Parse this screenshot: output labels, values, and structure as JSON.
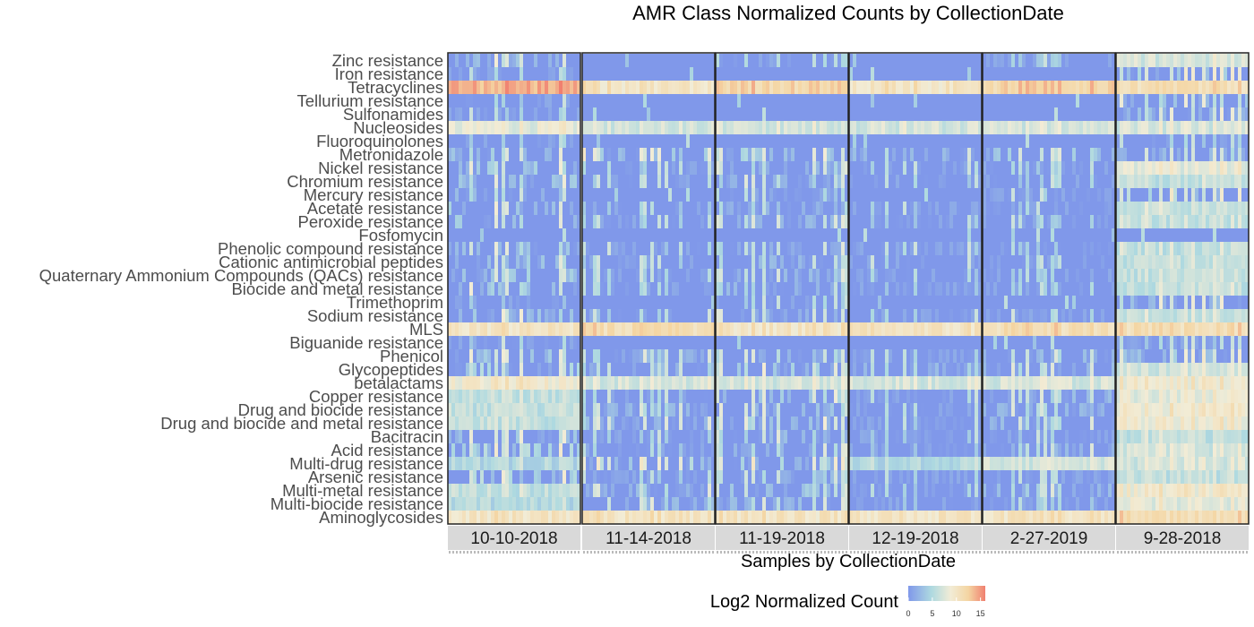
{
  "chart_data": {
    "type": "heatmap",
    "title": "AMR Class Normalized Counts by CollectionDate",
    "xlabel": "Samples by CollectionDate",
    "ylabel": "",
    "legend": {
      "title": "Log2 Normalized Count",
      "ticks": [
        0,
        5,
        10,
        15
      ],
      "range": [
        0,
        16
      ],
      "colors": [
        "#8098ea",
        "#aed9e0",
        "#f2ecd6",
        "#f4d5a2",
        "#f08070"
      ],
      "placement": "bottom"
    },
    "facets": [
      "10-10-2018",
      "11-14-2018",
      "11-19-2018",
      "12-19-2018",
      "2-27-2019",
      "9-28-2018"
    ],
    "rows": [
      "Zinc resistance",
      "Iron resistance",
      "Tetracyclines",
      "Tellurium resistance",
      "Sulfonamides",
      "Nucleosides",
      "Fluoroquinolones",
      "Metronidazole",
      "Nickel resistance",
      "Chromium resistance",
      "Mercury resistance",
      "Acetate resistance",
      "Peroxide resistance",
      "Fosfomycin",
      "Phenolic compound resistance",
      "Cationic antimicrobial peptides",
      "Quaternary Ammonium Compounds (QACs) resistance",
      "Biocide and metal resistance",
      "Trimethoprim",
      "Sodium resistance",
      "MLS",
      "Biguanide resistance",
      "Phenicol",
      "Glycopeptides",
      "betalactams",
      "Copper resistance",
      "Drug and biocide resistance",
      "Drug and biocide and metal resistance",
      "Bacitracin",
      "Acid resistance",
      "Multi-drug resistance",
      "Arsenic resistance",
      "Multi-metal resistance",
      "Multi-biocide resistance",
      "Aminoglycosides"
    ],
    "facet_row_means": [
      [
        3,
        1,
        14,
        1,
        1,
        8,
        1,
        3,
        3,
        3,
        2,
        3,
        3,
        0,
        3,
        3,
        3,
        3,
        1,
        3,
        10,
        1,
        3,
        4,
        9,
        6,
        6,
        6,
        3,
        4,
        5,
        4,
        6,
        5,
        10
      ],
      [
        0,
        0,
        10,
        0,
        0,
        7,
        0,
        4,
        1,
        1,
        0,
        1,
        1,
        0,
        1,
        1,
        1,
        1,
        0,
        1,
        11,
        0,
        2,
        2,
        7,
        1,
        2,
        2,
        1,
        1,
        4,
        1,
        2,
        2,
        10
      ],
      [
        1,
        0,
        12,
        0,
        0,
        7,
        0,
        3,
        2,
        2,
        1,
        2,
        2,
        0,
        2,
        2,
        2,
        2,
        1,
        2,
        10,
        0,
        2,
        3,
        7,
        3,
        3,
        3,
        2,
        2,
        4,
        2,
        3,
        2,
        10
      ],
      [
        0,
        0,
        10,
        0,
        0,
        7,
        0,
        2,
        1,
        1,
        0,
        1,
        1,
        0,
        1,
        1,
        1,
        1,
        0,
        1,
        10,
        0,
        1,
        2,
        7,
        1,
        1,
        1,
        1,
        1,
        5,
        1,
        1,
        1,
        10
      ],
      [
        1,
        0,
        12,
        0,
        0,
        7,
        0,
        3,
        1,
        1,
        1,
        1,
        1,
        0,
        1,
        1,
        1,
        1,
        0,
        1,
        11,
        0,
        2,
        2,
        7,
        2,
        2,
        2,
        1,
        2,
        7,
        1,
        2,
        1,
        10
      ],
      [
        7,
        4,
        11,
        3,
        3,
        7,
        1,
        2,
        8,
        6,
        4,
        6,
        6,
        0,
        6,
        6,
        6,
        6,
        3,
        6,
        11,
        1,
        4,
        7,
        9,
        8,
        9,
        9,
        6,
        7,
        7,
        6,
        9,
        8,
        11
      ]
    ]
  }
}
